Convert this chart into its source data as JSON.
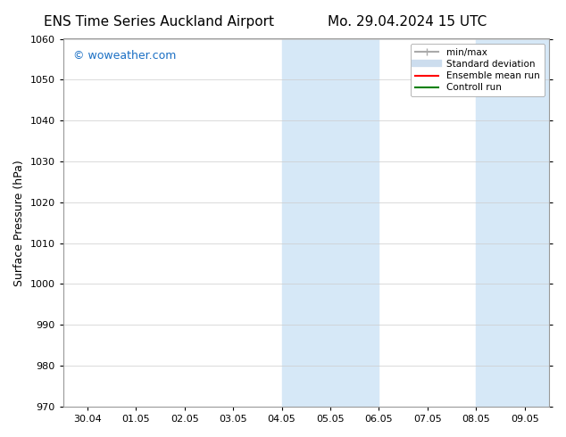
{
  "title_left": "ENS Time Series Auckland Airport",
  "title_right": "Mo. 29.04.2024 15 UTC",
  "ylabel": "Surface Pressure (hPa)",
  "ylim": [
    970,
    1060
  ],
  "yticks": [
    970,
    980,
    990,
    1000,
    1010,
    1020,
    1030,
    1040,
    1050,
    1060
  ],
  "xtick_labels": [
    "30.04",
    "01.05",
    "02.05",
    "03.05",
    "04.05",
    "05.05",
    "06.05",
    "07.05",
    "08.05",
    "09.05"
  ],
  "shaded_regions": [
    {
      "xstart": 4.0,
      "xend": 6.0,
      "color": "#d6e8f7"
    },
    {
      "xstart": 8.0,
      "xend": 9.5,
      "color": "#d6e8f7"
    }
  ],
  "watermark_text": "© woweather.com",
  "watermark_color": "#1a6fc4",
  "legend_items": [
    {
      "label": "min/max",
      "color": "#aaaaaa",
      "lw": 1.5,
      "style": "line_with_caps"
    },
    {
      "label": "Standard deviation",
      "color": "#ccddee",
      "lw": 6,
      "style": "line"
    },
    {
      "label": "Ensemble mean run",
      "color": "red",
      "lw": 1.5,
      "style": "line"
    },
    {
      "label": "Controll run",
      "color": "green",
      "lw": 1.5,
      "style": "line"
    }
  ],
  "background_color": "#ffffff",
  "plot_bg_color": "#ffffff",
  "grid_color": "#cccccc",
  "title_fontsize": 11,
  "tick_fontsize": 8,
  "ylabel_fontsize": 9
}
